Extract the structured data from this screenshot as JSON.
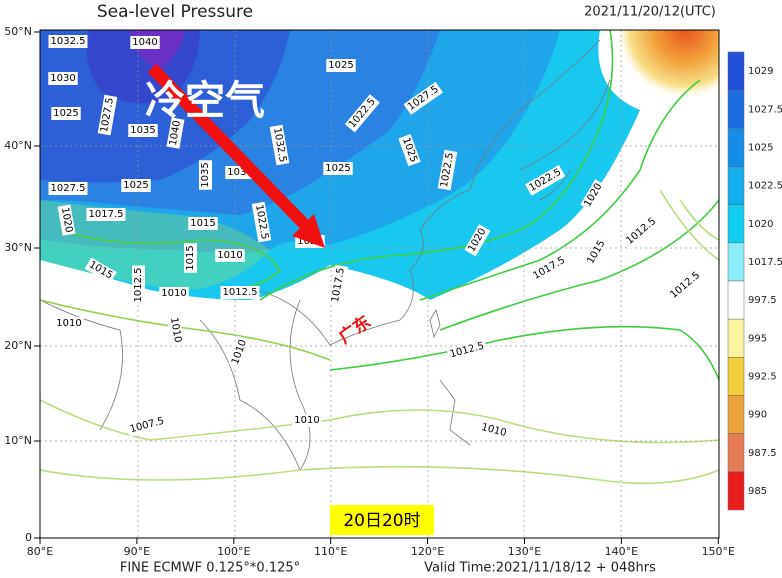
{
  "header": {
    "title": "Sea-level Pressure",
    "time": "2021/11/20/12(UTC)"
  },
  "axes": {
    "lat": [
      "0",
      "10°N",
      "20°N",
      "30°N",
      "40°N",
      "50°N"
    ],
    "lon": [
      "80°E",
      "90°E",
      "100°E",
      "110°E",
      "120°E",
      "130°E",
      "140°E",
      "150°E"
    ]
  },
  "colorbar": [
    "1029",
    "1027.5",
    "1025",
    "1022.5",
    "1020",
    "1017.5",
    "997.5",
    "995",
    "992.5",
    "990",
    "987.5",
    "985"
  ],
  "contour_labels": [
    "1040",
    "1032.5",
    "1030",
    "1025",
    "1035",
    "1040",
    "1027.5",
    "1025",
    "1027.5",
    "1022.5",
    "1032.5",
    "1025",
    "1022.5",
    "1025",
    "1035",
    "1030",
    "1027.5",
    "1025",
    "1022.5",
    "1020",
    "1020",
    "1017.5",
    "1015",
    "1022.5",
    "1015",
    "1010",
    "1010",
    "1012.5",
    "1012.5",
    "1015",
    "1020",
    "1020",
    "1017.5",
    "1017.5",
    "1015",
    "1012.5",
    "1012.5",
    "1010",
    "1010",
    "1010",
    "1012.5",
    "1007.5",
    "1010",
    "1010"
  ],
  "annotations": {
    "cold_air": "冷空气",
    "region": "广东",
    "time": "20日20时"
  },
  "footer": {
    "model": "FINE ECMWF 0.125°*0.125°",
    "valid": "Valid Time:2021/11/18/12 + 048hrs"
  }
}
